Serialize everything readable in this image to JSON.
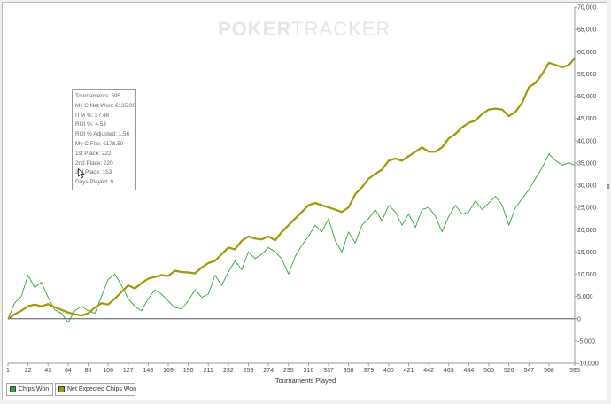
{
  "watermark": {
    "bold": "POKER",
    "thin": "TRACKER"
  },
  "tooltip": [
    "Tournaments: 595",
    "My C Net Won: €135.00",
    "ITM %: 37.48",
    "ROI %: 4.53",
    "ROI % Adjusted: 1.56",
    "My C Fee: €178.50",
    "1st Place: 222",
    "2nd Place: 220",
    "3rd Place: 153",
    "Days Played: 9"
  ],
  "chart_data": {
    "type": "line",
    "xlabel": "Tournaments Played",
    "ylabel": "",
    "xlim": [
      1,
      595
    ],
    "ylim": [
      -10000,
      70000
    ],
    "y_ticks": [
      "70,000",
      "65,000",
      "60,000",
      "55,000",
      "50,000",
      "45,000",
      "40,000",
      "35,000",
      "30,000",
      "25,000",
      "20,000",
      "15,000",
      "10,000",
      "5,000",
      "0",
      "-5,000",
      "-10,000"
    ],
    "x_ticks": [
      1,
      22,
      43,
      64,
      85,
      106,
      127,
      148,
      169,
      190,
      211,
      232,
      253,
      274,
      295,
      316,
      337,
      358,
      379,
      400,
      421,
      442,
      463,
      484,
      505,
      526,
      547,
      568,
      595
    ],
    "grid": false,
    "legend": "bottom-left",
    "series": [
      {
        "name": "Chips Won",
        "color": "#2ea43a",
        "x": [
          1,
          8,
          15,
          22,
          29,
          36,
          43,
          50,
          57,
          64,
          71,
          78,
          85,
          92,
          99,
          106,
          113,
          120,
          127,
          134,
          141,
          148,
          155,
          162,
          169,
          176,
          183,
          190,
          197,
          204,
          211,
          218,
          225,
          232,
          239,
          246,
          253,
          260,
          267,
          274,
          281,
          288,
          295,
          302,
          309,
          316,
          323,
          330,
          337,
          344,
          351,
          358,
          365,
          372,
          379,
          386,
          393,
          400,
          407,
          414,
          421,
          428,
          435,
          442,
          449,
          456,
          463,
          470,
          477,
          484,
          491,
          498,
          505,
          512,
          519,
          526,
          533,
          540,
          547,
          554,
          561,
          568,
          575,
          582,
          589,
          595
        ],
        "y": [
          0,
          3500,
          5000,
          9800,
          7000,
          8200,
          4800,
          2000,
          1200,
          -800,
          1800,
          2800,
          1800,
          1200,
          5000,
          8800,
          10000,
          7500,
          4500,
          2800,
          1800,
          4500,
          6500,
          5500,
          4000,
          2500,
          2200,
          4000,
          6500,
          4800,
          5500,
          9800,
          7500,
          10500,
          13000,
          11000,
          15000,
          13500,
          14500,
          16000,
          15000,
          13500,
          10000,
          14000,
          16500,
          18500,
          21000,
          19500,
          22500,
          17500,
          15000,
          19500,
          17000,
          21000,
          22500,
          24500,
          22000,
          25500,
          24000,
          21000,
          23500,
          20500,
          24500,
          25000,
          23000,
          19500,
          23000,
          25500,
          23500,
          24000,
          26500,
          24500,
          26000,
          27500,
          25500,
          21000,
          25000,
          27000,
          29000,
          31500,
          34000,
          37000,
          35500,
          34500,
          35000,
          34500
        ]
      },
      {
        "name": "Net Expected Chips Won",
        "color": "#a09808",
        "x": [
          1,
          8,
          15,
          22,
          29,
          36,
          43,
          50,
          57,
          64,
          71,
          78,
          85,
          92,
          99,
          106,
          113,
          120,
          127,
          134,
          141,
          148,
          155,
          162,
          169,
          176,
          183,
          190,
          197,
          204,
          211,
          218,
          225,
          232,
          239,
          246,
          253,
          260,
          267,
          274,
          281,
          288,
          295,
          302,
          309,
          316,
          323,
          330,
          337,
          344,
          351,
          358,
          365,
          372,
          379,
          386,
          393,
          400,
          407,
          414,
          421,
          428,
          435,
          442,
          449,
          456,
          463,
          470,
          477,
          484,
          491,
          498,
          505,
          512,
          519,
          526,
          533,
          540,
          547,
          554,
          561,
          568,
          575,
          582,
          589,
          595
        ],
        "y": [
          0,
          1000,
          1800,
          2800,
          3200,
          2800,
          3300,
          2600,
          2000,
          1400,
          1000,
          700,
          1200,
          2500,
          3500,
          3200,
          4500,
          6000,
          7500,
          6800,
          8000,
          9000,
          9400,
          9800,
          9600,
          10800,
          10500,
          10400,
          10200,
          11500,
          12500,
          13000,
          14500,
          16000,
          15600,
          17500,
          18500,
          18000,
          17800,
          18500,
          17600,
          19500,
          21000,
          22500,
          24000,
          25500,
          26000,
          25500,
          25000,
          24500,
          24000,
          25000,
          28000,
          29500,
          31500,
          32500,
          33500,
          35500,
          36000,
          35500,
          36500,
          37500,
          38500,
          37500,
          37500,
          38500,
          40500,
          41500,
          43000,
          44000,
          44500,
          46000,
          47000,
          47200,
          47000,
          45500,
          46500,
          48500,
          52000,
          53000,
          55000,
          57500,
          57000,
          56500,
          57000,
          58500
        ]
      }
    ]
  }
}
